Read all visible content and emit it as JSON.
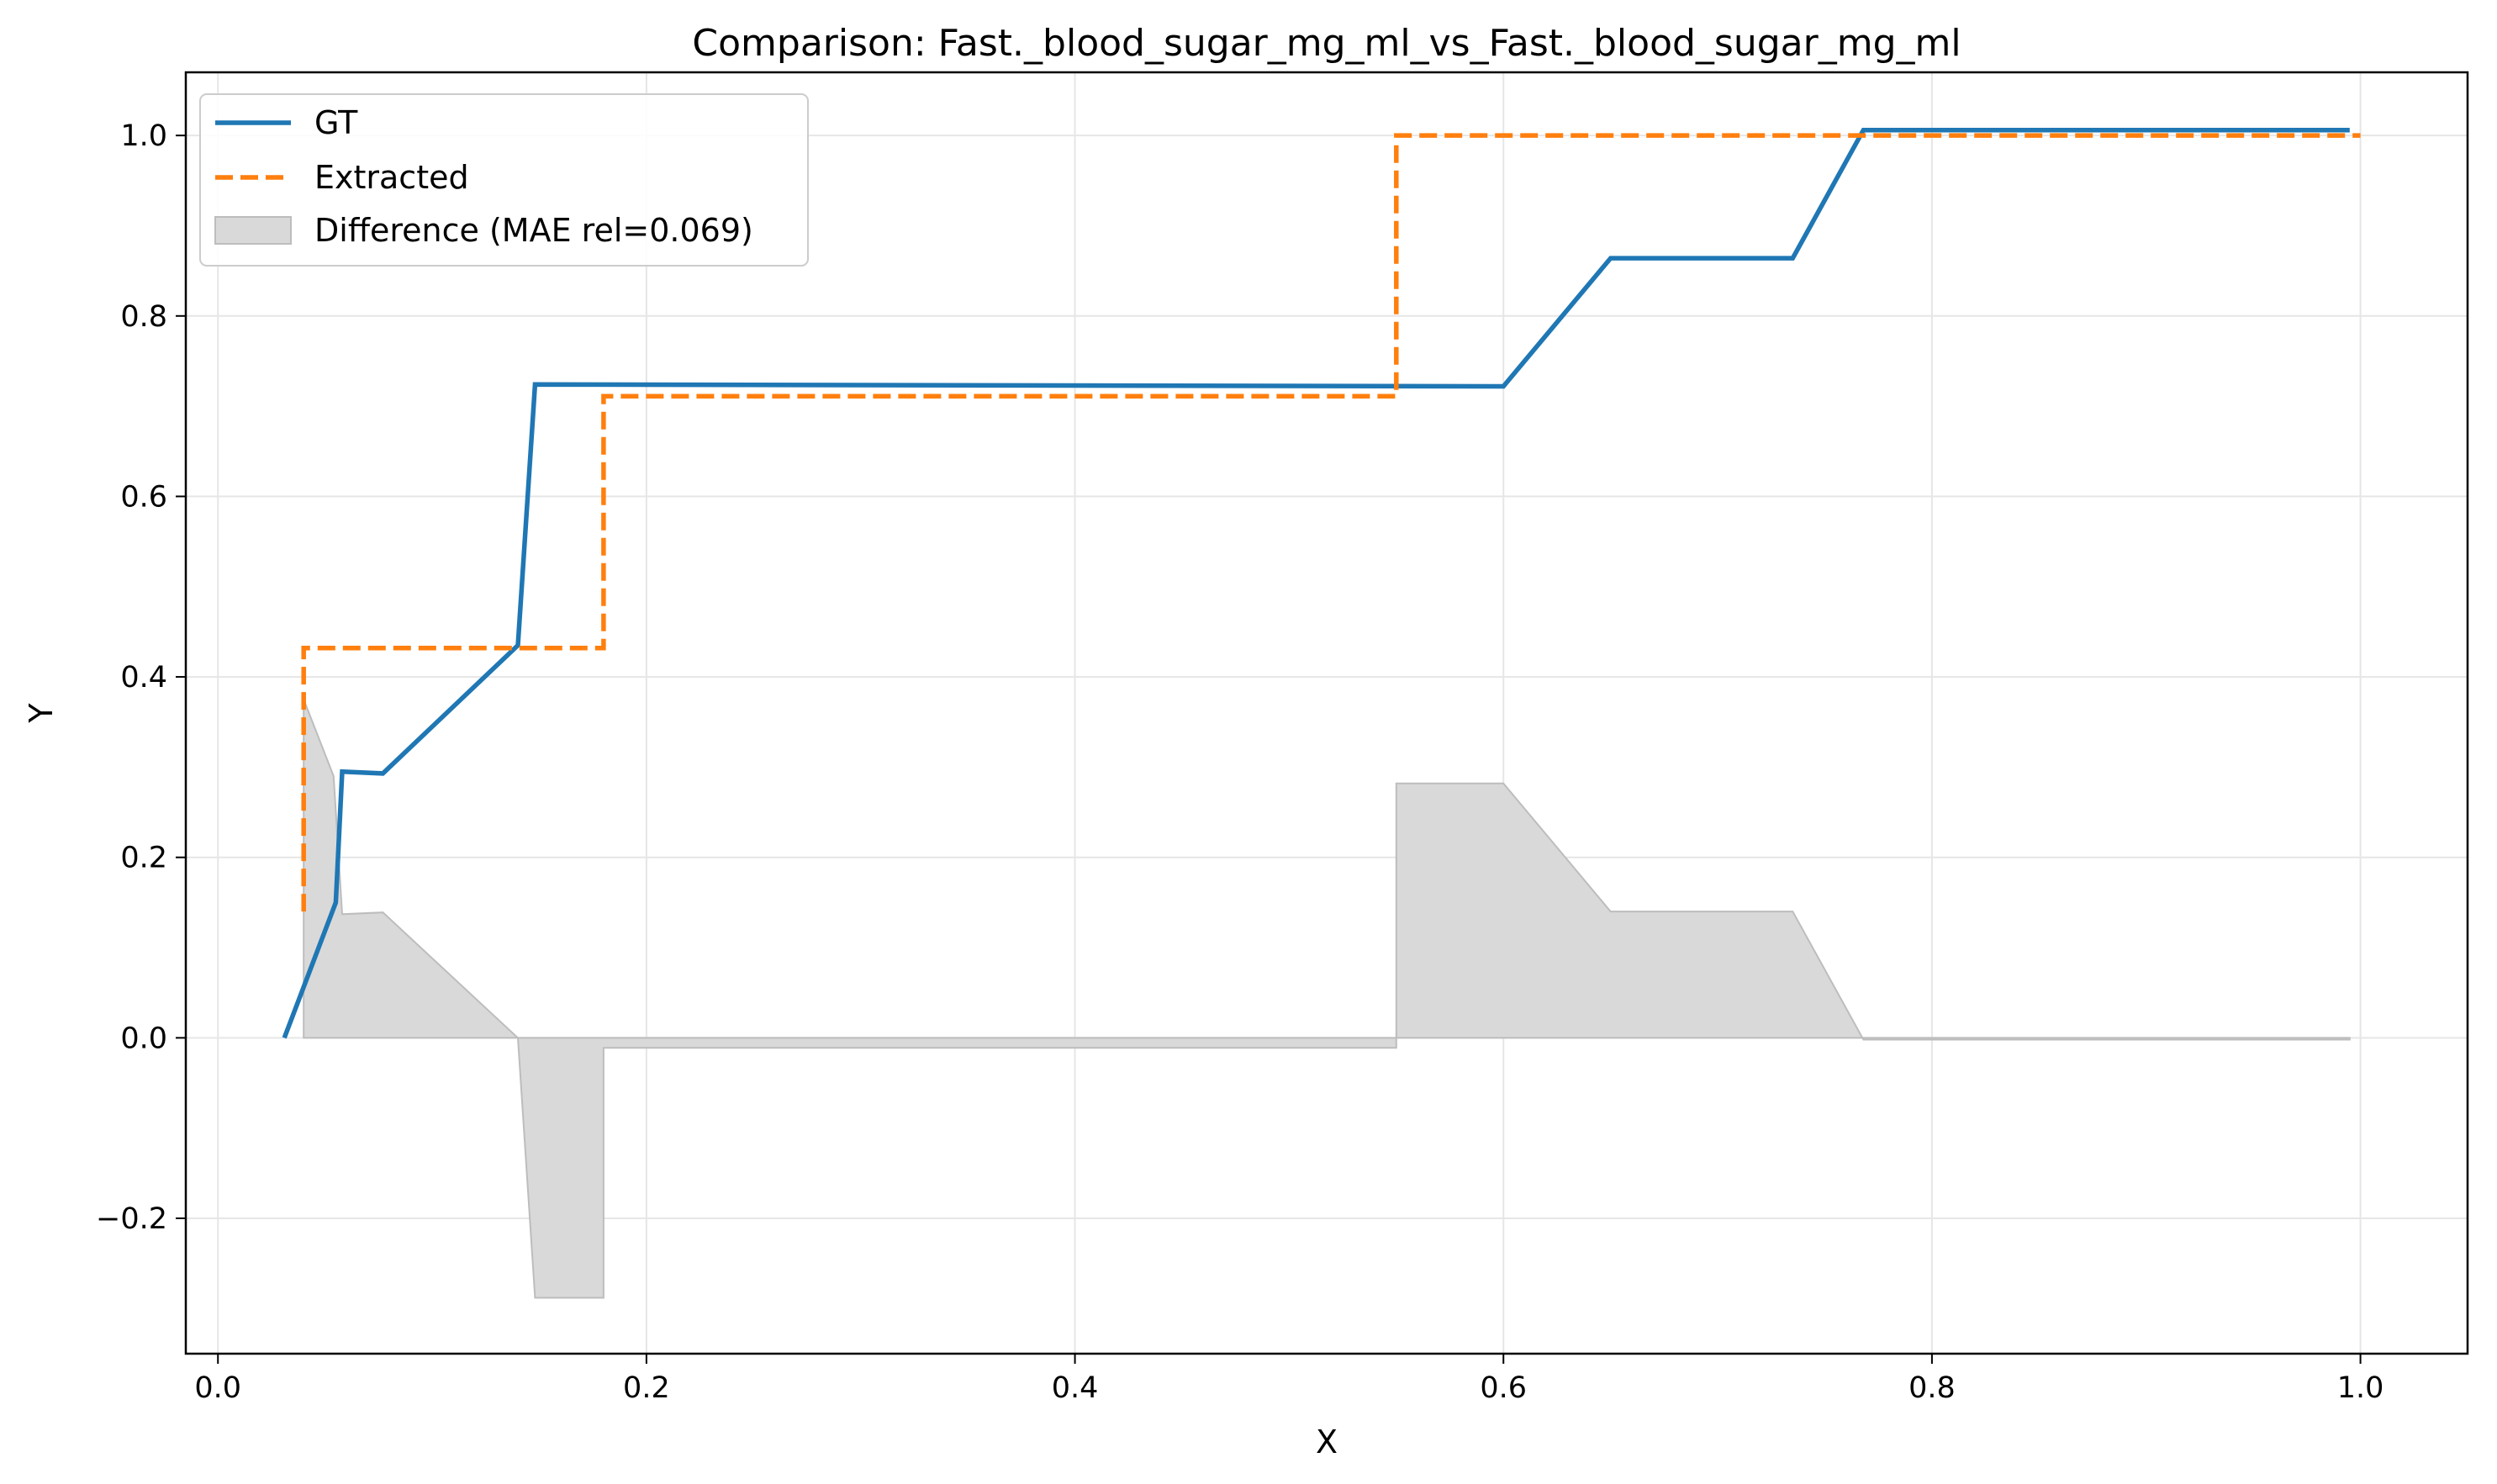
{
  "chart_data": {
    "type": "line",
    "title": "Comparison: Fast._blood_sugar_mg_ml_vs_Fast._blood_sugar_mg_ml",
    "xlabel": "X",
    "ylabel": "Y",
    "xlim": [
      -0.015,
      1.05
    ],
    "ylim": [
      -0.35,
      1.07
    ],
    "xticks": [
      {
        "value": 0.0,
        "label": "0.0"
      },
      {
        "value": 0.2,
        "label": "0.2"
      },
      {
        "value": 0.4,
        "label": "0.4"
      },
      {
        "value": 0.6,
        "label": "0.6"
      },
      {
        "value": 0.8,
        "label": "0.8"
      },
      {
        "value": 1.0,
        "label": "1.0"
      }
    ],
    "yticks": [
      {
        "value": -0.2,
        "label": "−0.2"
      },
      {
        "value": 0.0,
        "label": "0.0"
      },
      {
        "value": 0.2,
        "label": "0.2"
      },
      {
        "value": 0.4,
        "label": "0.4"
      },
      {
        "value": 0.6,
        "label": "0.6"
      },
      {
        "value": 0.8,
        "label": "0.8"
      },
      {
        "value": 1.0,
        "label": "1.0"
      }
    ],
    "grid": true,
    "legend_position": "top-left",
    "series": [
      {
        "name": "GT",
        "style": "solid",
        "color": "#1f77b4",
        "points": [
          [
            0.031,
            0.0
          ],
          [
            0.055,
            0.15
          ],
          [
            0.058,
            0.295
          ],
          [
            0.077,
            0.293
          ],
          [
            0.14,
            0.435
          ],
          [
            0.148,
            0.724
          ],
          [
            0.6,
            0.722
          ],
          [
            0.65,
            0.864
          ],
          [
            0.735,
            0.864
          ],
          [
            0.768,
            1.006
          ],
          [
            0.995,
            1.006
          ]
        ]
      },
      {
        "name": "Extracted",
        "style": "dashed",
        "color": "#ff7f0e",
        "points": [
          [
            0.04,
            0.14
          ],
          [
            0.04,
            0.432
          ],
          [
            0.18,
            0.432
          ],
          [
            0.18,
            0.711
          ],
          [
            0.55,
            0.711
          ],
          [
            0.55,
            1.0
          ],
          [
            1.0,
            1.0
          ]
        ]
      }
    ],
    "difference_area": {
      "name": "Difference (MAE rel=0.069)",
      "color": "#d9d9d9",
      "edge_color": "#bdbdbd",
      "points": [
        [
          0.04,
          0.0
        ],
        [
          0.04,
          0.375
        ],
        [
          0.054,
          0.29
        ],
        [
          0.058,
          0.137
        ],
        [
          0.077,
          0.139
        ],
        [
          0.14,
          0.0
        ],
        [
          0.148,
          -0.288
        ],
        [
          0.18,
          -0.288
        ],
        [
          0.18,
          -0.011
        ],
        [
          0.55,
          -0.011
        ],
        [
          0.55,
          0.282
        ],
        [
          0.6,
          0.282
        ],
        [
          0.65,
          0.14
        ],
        [
          0.735,
          0.14
        ],
        [
          0.768,
          -0.002
        ],
        [
          0.995,
          -0.002
        ],
        [
          0.995,
          0.0
        ]
      ]
    }
  },
  "legend": {
    "gt": "GT",
    "extracted": "Extracted",
    "difference": "Difference (MAE rel=0.069)"
  }
}
